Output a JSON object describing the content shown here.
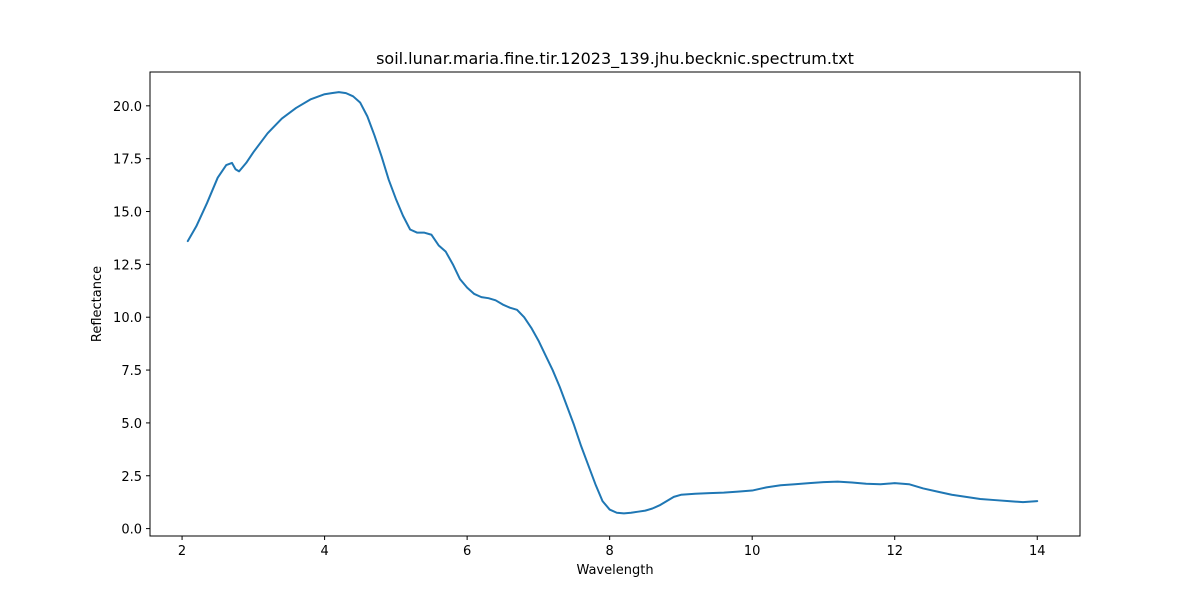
{
  "chart_data": {
    "type": "line",
    "title": "soil.lunar.maria.fine.tir.12023_139.jhu.becknic.spectrum.txt",
    "xlabel": "Wavelength",
    "ylabel": "Reflectance",
    "xlim": [
      1.55,
      14.6
    ],
    "ylim": [
      -0.35,
      21.6
    ],
    "xticks": [
      2,
      4,
      6,
      8,
      10,
      12,
      14
    ],
    "yticks": [
      0.0,
      2.5,
      5.0,
      7.5,
      10.0,
      12.5,
      15.0,
      17.5,
      20.0
    ],
    "xtick_labels": [
      "2",
      "4",
      "6",
      "8",
      "10",
      "12",
      "14"
    ],
    "ytick_labels": [
      "0.0",
      "2.5",
      "5.0",
      "7.5",
      "10.0",
      "12.5",
      "15.0",
      "17.5",
      "20.0"
    ],
    "grid": false,
    "series": [
      {
        "color": "#1f77b4",
        "x": [
          2.08,
          2.2,
          2.35,
          2.5,
          2.62,
          2.7,
          2.75,
          2.8,
          2.9,
          3.0,
          3.2,
          3.4,
          3.6,
          3.8,
          4.0,
          4.1,
          4.2,
          4.3,
          4.4,
          4.5,
          4.6,
          4.7,
          4.8,
          4.9,
          5.0,
          5.1,
          5.2,
          5.3,
          5.4,
          5.5,
          5.6,
          5.7,
          5.8,
          5.9,
          6.0,
          6.1,
          6.2,
          6.3,
          6.4,
          6.5,
          6.6,
          6.7,
          6.8,
          6.9,
          7.0,
          7.1,
          7.2,
          7.3,
          7.4,
          7.5,
          7.6,
          7.7,
          7.8,
          7.9,
          8.0,
          8.1,
          8.2,
          8.3,
          8.4,
          8.5,
          8.6,
          8.7,
          8.8,
          8.9,
          9.0,
          9.2,
          9.4,
          9.6,
          9.8,
          10.0,
          10.2,
          10.4,
          10.6,
          10.8,
          11.0,
          11.2,
          11.4,
          11.6,
          11.8,
          12.0,
          12.2,
          12.4,
          12.6,
          12.8,
          13.0,
          13.2,
          13.4,
          13.6,
          13.8,
          14.0
        ],
        "y": [
          13.6,
          14.3,
          15.4,
          16.6,
          17.2,
          17.3,
          17.0,
          16.9,
          17.3,
          17.8,
          18.7,
          19.4,
          19.9,
          20.3,
          20.55,
          20.6,
          20.65,
          20.6,
          20.45,
          20.15,
          19.5,
          18.6,
          17.6,
          16.5,
          15.6,
          14.8,
          14.15,
          14.0,
          14.0,
          13.9,
          13.4,
          13.1,
          12.5,
          11.8,
          11.4,
          11.1,
          10.95,
          10.9,
          10.8,
          10.6,
          10.45,
          10.35,
          10.0,
          9.5,
          8.9,
          8.2,
          7.5,
          6.7,
          5.8,
          4.9,
          3.9,
          3.0,
          2.1,
          1.3,
          0.9,
          0.75,
          0.72,
          0.75,
          0.8,
          0.85,
          0.95,
          1.1,
          1.3,
          1.5,
          1.6,
          1.65,
          1.68,
          1.7,
          1.75,
          1.8,
          1.95,
          2.05,
          2.1,
          2.15,
          2.2,
          2.22,
          2.18,
          2.12,
          2.1,
          2.15,
          2.1,
          1.9,
          1.75,
          1.6,
          1.5,
          1.4,
          1.35,
          1.3,
          1.25,
          1.3
        ]
      }
    ]
  }
}
